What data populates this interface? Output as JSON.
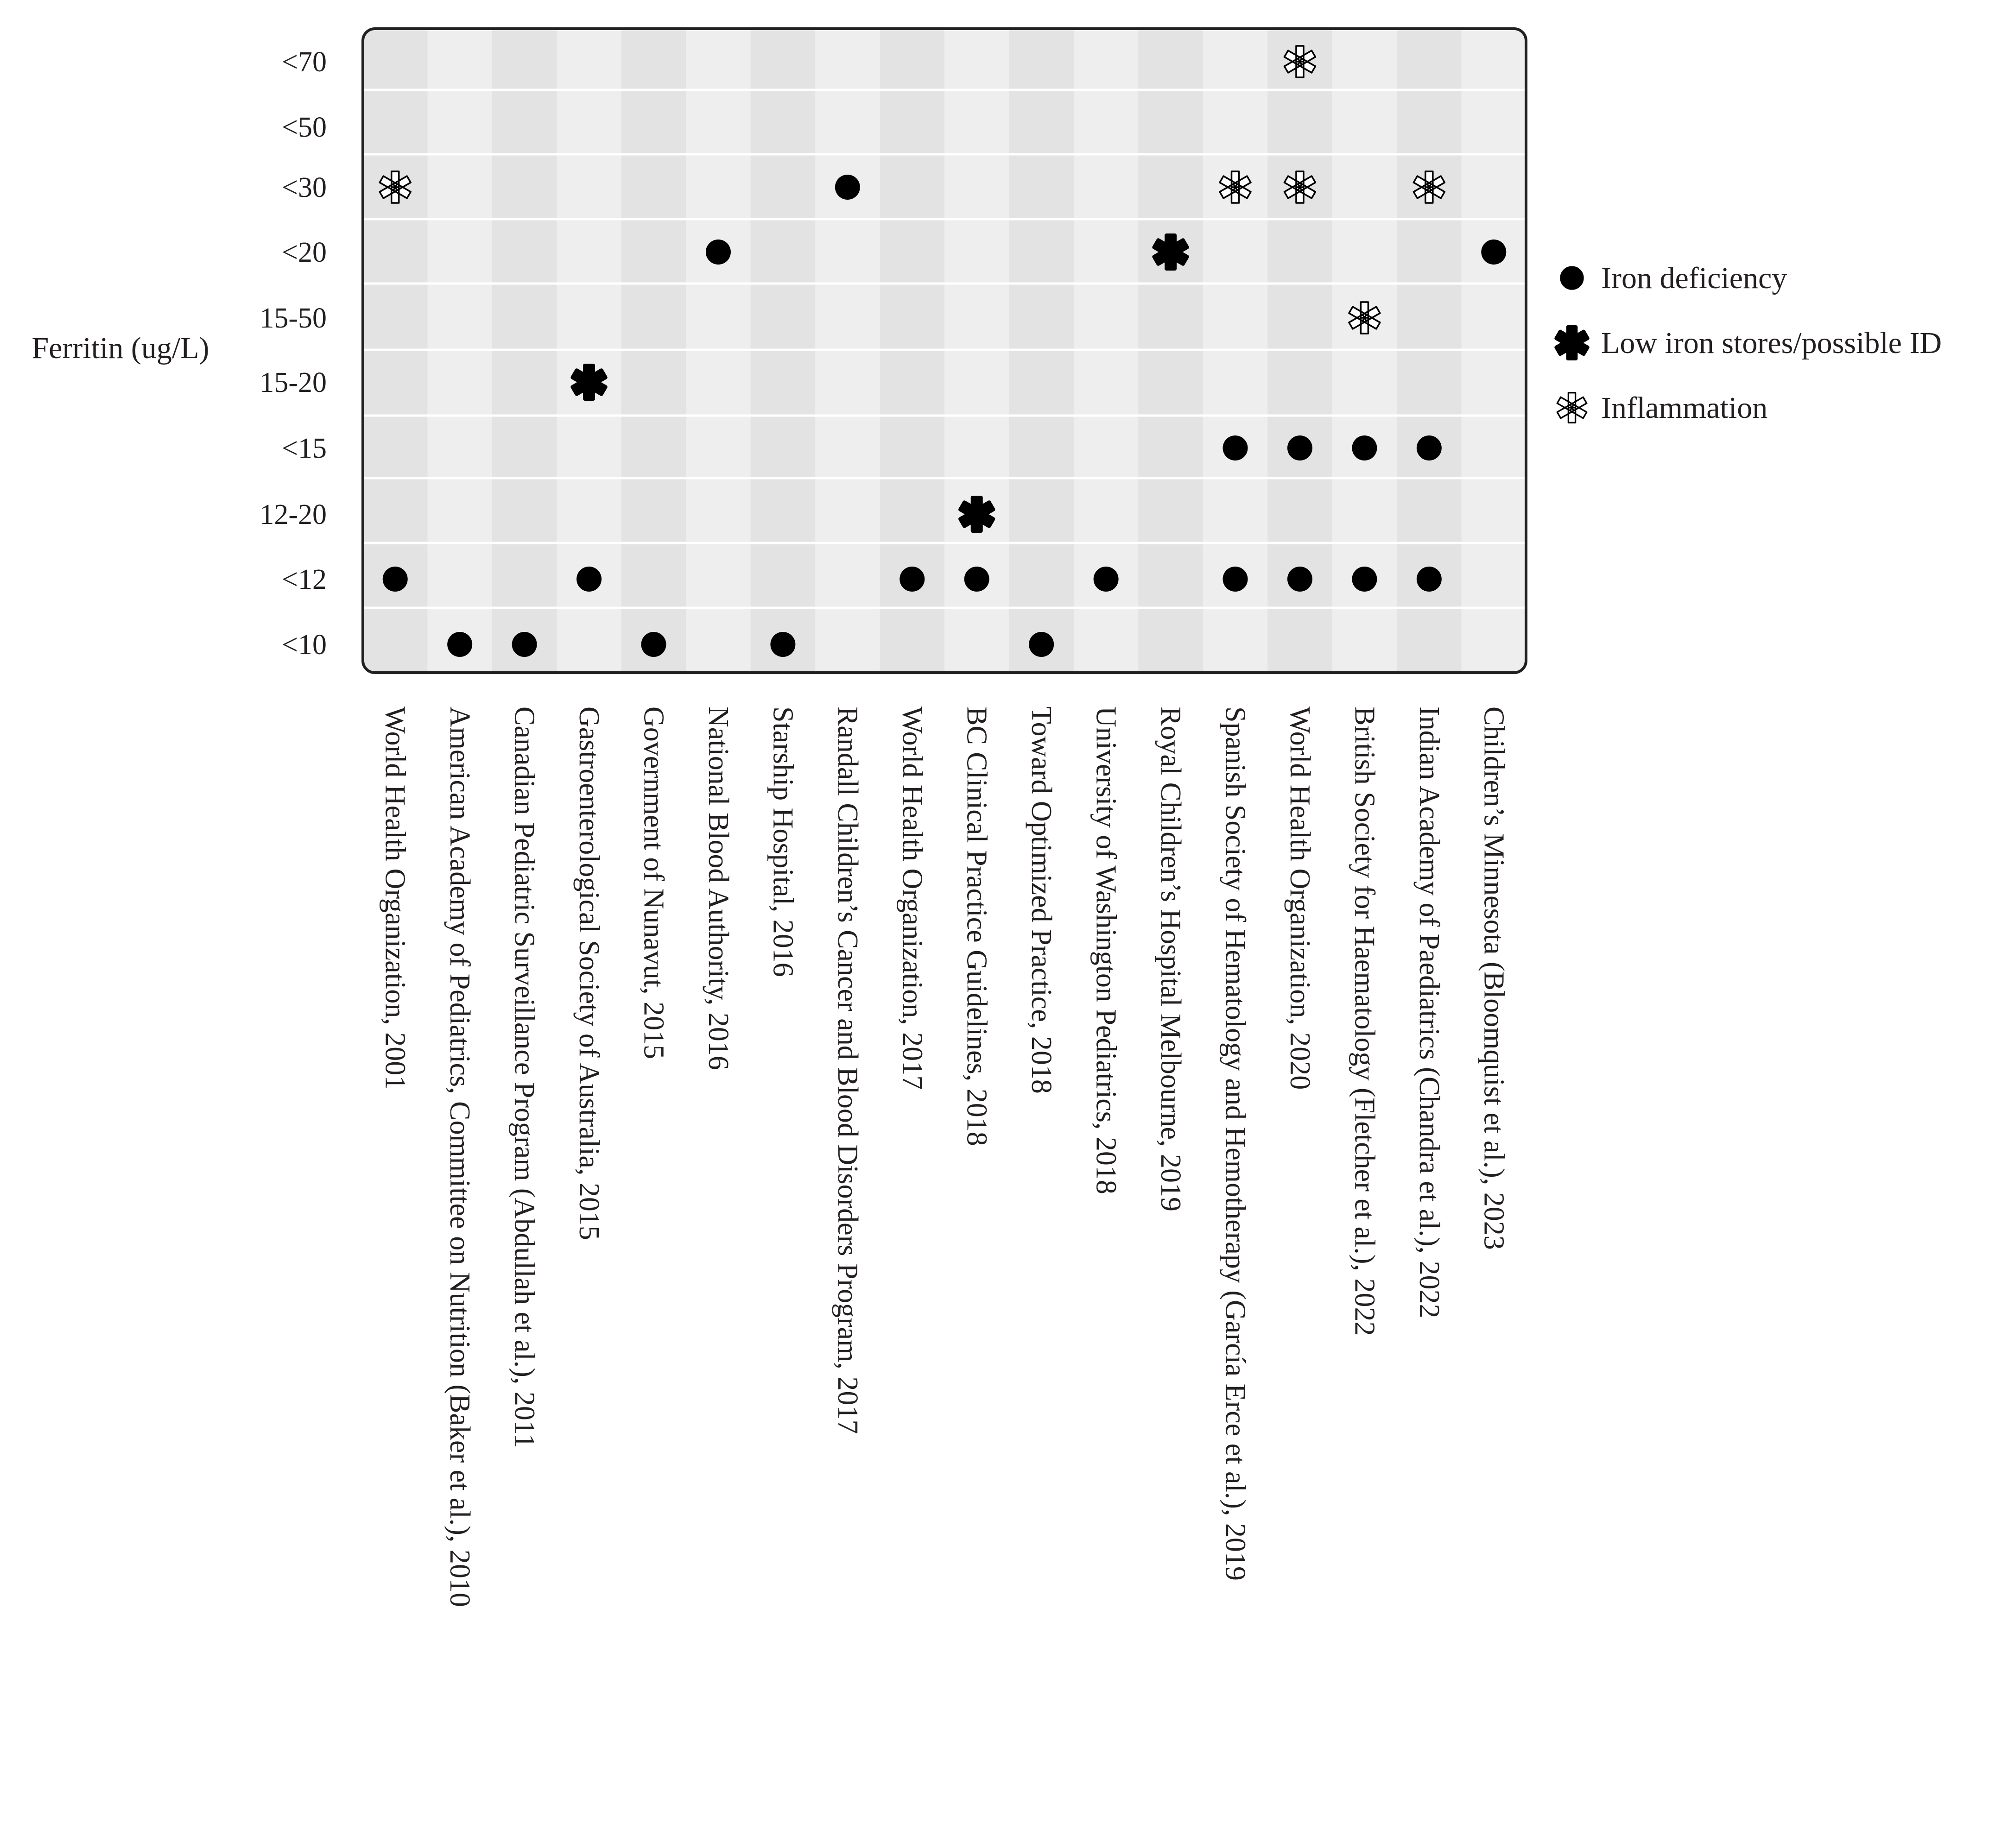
{
  "chart_data": {
    "type": "scatter",
    "title": "",
    "xlabel": "",
    "ylabel": "Ferritin (ug/L)",
    "y_categories": [
      "<10",
      "<12",
      "12-20",
      "<15",
      "15-20",
      "15-50",
      "<20",
      "<30",
      "<50",
      "<70"
    ],
    "categories": [
      "World Health Organization, 2001",
      "American Academy of Pediatrics, Committee on Nutrition (Baker et al.), 2010",
      "Canadian Pediatric Surveillance Program (Abdullah et al.), 2011",
      "Gastroenterological Society of Australia, 2015",
      "Government of Nunavut, 2015",
      "National Blood Authority, 2016",
      "Starship Hospital, 2016",
      "Randall Children’s Cancer and Blood Disorders Program, 2017",
      "World Health Organization, 2017",
      "BC Clinical Practice Guidelines, 2018",
      "Toward Optimized Practice, 2018",
      "University of Washington Pediatrics, 2018",
      "Royal Children’s Hospital Melbourne, 2019",
      "Spanish Society of Hematology and Hemotherapy (García Erce et al.), 2019",
      "World Health Organization, 2020",
      "British Society for Haematology (Fletcher et al.), 2022",
      "Indian Academy of Paediatrics (Chandra et al.), 2022",
      "Children’s Minnesota (Bloomquist et al.), 2023"
    ],
    "series": [
      {
        "name": "Iron deficiency",
        "marker": "filled-circle",
        "points": [
          {
            "x": "World Health Organization, 2001",
            "y": "<12"
          },
          {
            "x": "American Academy of Pediatrics, Committee on Nutrition (Baker et al.), 2010",
            "y": "<10"
          },
          {
            "x": "Canadian Pediatric Surveillance Program (Abdullah et al.), 2011",
            "y": "<10"
          },
          {
            "x": "Gastroenterological Society of Australia, 2015",
            "y": "<12"
          },
          {
            "x": "Government of Nunavut, 2015",
            "y": "<10"
          },
          {
            "x": "National Blood Authority, 2016",
            "y": "<20"
          },
          {
            "x": "Starship Hospital, 2016",
            "y": "<10"
          },
          {
            "x": "Randall Children’s Cancer and Blood Disorders Program, 2017",
            "y": "<30"
          },
          {
            "x": "World Health Organization, 2017",
            "y": "<12"
          },
          {
            "x": "BC Clinical Practice Guidelines, 2018",
            "y": "<12"
          },
          {
            "x": "Toward Optimized Practice, 2018",
            "y": "<10"
          },
          {
            "x": "University of Washington Pediatrics, 2018",
            "y": "<12"
          },
          {
            "x": "Spanish Society of Hematology and Hemotherapy (García Erce et al.), 2019",
            "y": "<15"
          },
          {
            "x": "Spanish Society of Hematology and Hemotherapy (García Erce et al.), 2019",
            "y": "<12"
          },
          {
            "x": "World Health Organization, 2020",
            "y": "<15"
          },
          {
            "x": "World Health Organization, 2020",
            "y": "<12"
          },
          {
            "x": "British Society for Haematology (Fletcher et al.), 2022",
            "y": "<15"
          },
          {
            "x": "British Society for Haematology (Fletcher et al.), 2022",
            "y": "<12"
          },
          {
            "x": "Indian Academy of Paediatrics (Chandra et al.), 2022",
            "y": "<15"
          },
          {
            "x": "Indian Academy of Paediatrics (Chandra et al.), 2022",
            "y": "<12"
          },
          {
            "x": "Children’s Minnesota (Bloomquist et al.), 2023",
            "y": "<20"
          }
        ]
      },
      {
        "name": "Low iron stores/possible ID",
        "marker": "filled-asterisk",
        "points": [
          {
            "x": "Gastroenterological Society of Australia, 2015",
            "y": "15-20"
          },
          {
            "x": "BC Clinical Practice Guidelines, 2018",
            "y": "12-20"
          },
          {
            "x": "Royal Children’s Hospital Melbourne, 2019",
            "y": "<20"
          }
        ]
      },
      {
        "name": "Inflammation",
        "marker": "hollow-asterisk",
        "points": [
          {
            "x": "World Health Organization, 2001",
            "y": "<30"
          },
          {
            "x": "Spanish Society of Hematology and Hemotherapy (García Erce et al.), 2019",
            "y": "<30"
          },
          {
            "x": "World Health Organization, 2020",
            "y": "<70"
          },
          {
            "x": "World Health Organization, 2020",
            "y": "<30"
          },
          {
            "x": "British Society for Haematology (Fletcher et al.), 2022",
            "y": "15-50"
          },
          {
            "x": "Indian Academy of Paediatrics (Chandra et al.), 2022",
            "y": "<30"
          }
        ]
      }
    ],
    "legend": {
      "placement": "right",
      "entries": [
        "Iron deficiency",
        "Low iron stores/possible ID",
        "Inflammation"
      ]
    },
    "grid": true,
    "colors": {
      "marker": "#000000",
      "text": "#231f20",
      "column_dark": "#e3e3e4",
      "column_light": "#eeeeef",
      "gridline": "#ffffff",
      "frame": "#231f20"
    }
  }
}
